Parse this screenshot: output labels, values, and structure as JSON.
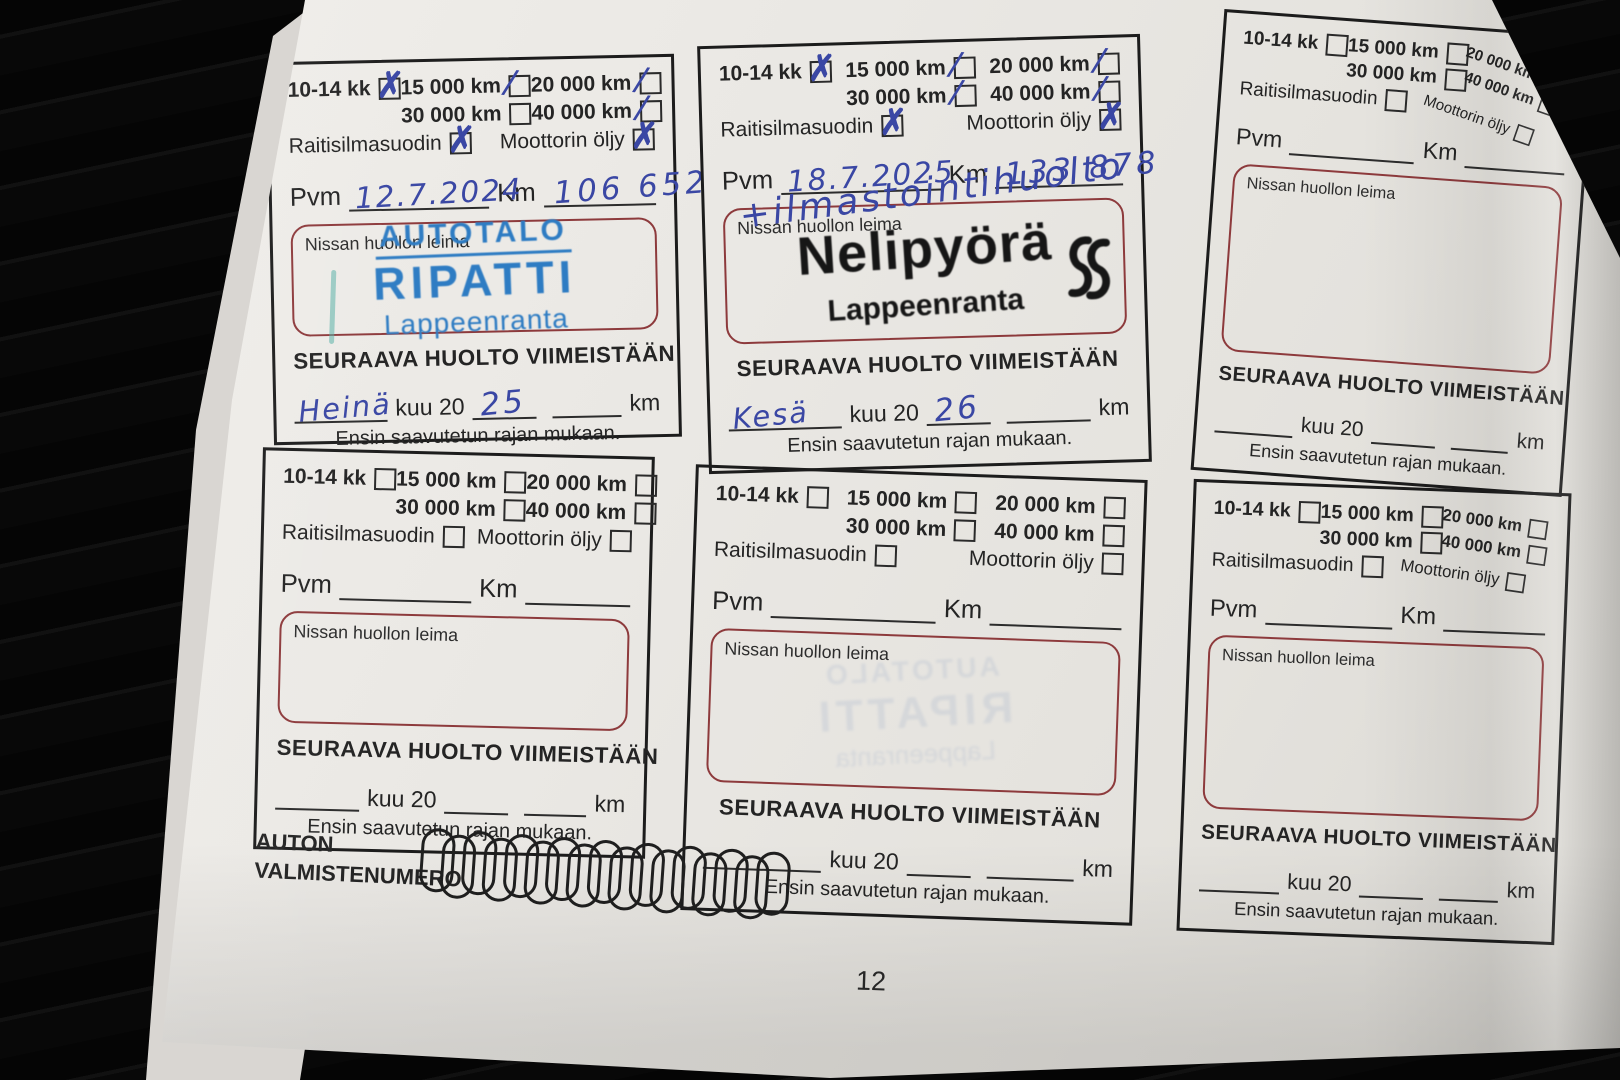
{
  "service_box_labels": {
    "interval": "10-14 kk",
    "km_15000": "15 000 km",
    "km_20000": "20 000 km",
    "km_30000": "30 000 km",
    "km_40000": "40 000 km",
    "fresh_air_filter": "Raitisilmasuodin",
    "engine_oil": "Moottorin öljy",
    "date_label": "Pvm",
    "km_label": "Km",
    "stamp_label": "Nissan huollon leima",
    "next_service_heading": "SEURAAVA HUOLTO VIIMEISTÄÄN",
    "month_suffix_label": "kuu 20",
    "km_unit_label": "km",
    "limit_rule": "Ensin saavutetun rajan mukaan."
  },
  "entries": [
    {
      "date_value": "12.7.2024",
      "km_value": "106 652",
      "marks": {
        "interval": "✗",
        "km_15000": "∕",
        "km_20000": "∕",
        "km_40000": "∕",
        "fresh_air_filter": "✗",
        "engine_oil": "✗"
      },
      "stamp": {
        "line1": "AUTOTALO",
        "line2": "RIPATTI",
        "line3": "Lappeenranta"
      },
      "next_month": "Heinä",
      "next_year": "25"
    },
    {
      "date_value": "18.7.2025",
      "km_value": "133 878",
      "note": "+ilmastointihuolto",
      "marks": {
        "interval": "✗",
        "km_15000": "∕",
        "km_30000": "∕",
        "km_20000": "∕",
        "km_40000": "∕",
        "fresh_air_filter": "✗",
        "engine_oil": "✗"
      },
      "stamp": {
        "line1": "Nelipyörä",
        "line2": "Lappeenranta"
      },
      "next_month": "Kesä",
      "next_year": "26"
    },
    {},
    {},
    {
      "ghost_stamp": {
        "line1": "AUTOTALO",
        "line2": "RIPATTI",
        "line3": "Lappeenranta"
      }
    },
    {}
  ],
  "footer": {
    "vin_label_line1": "AUTON",
    "vin_label_line2": "VALMISTENUMERO",
    "vin_slot_count": 17,
    "page_number": "12"
  },
  "colors": {
    "handwriting_blue": "#3a47a4",
    "stamp_blue": "#2e7cc3",
    "stamp_black": "#161616",
    "stamp_area_border_red": "#8d3a3c",
    "page_paper": "#eae8e4"
  }
}
